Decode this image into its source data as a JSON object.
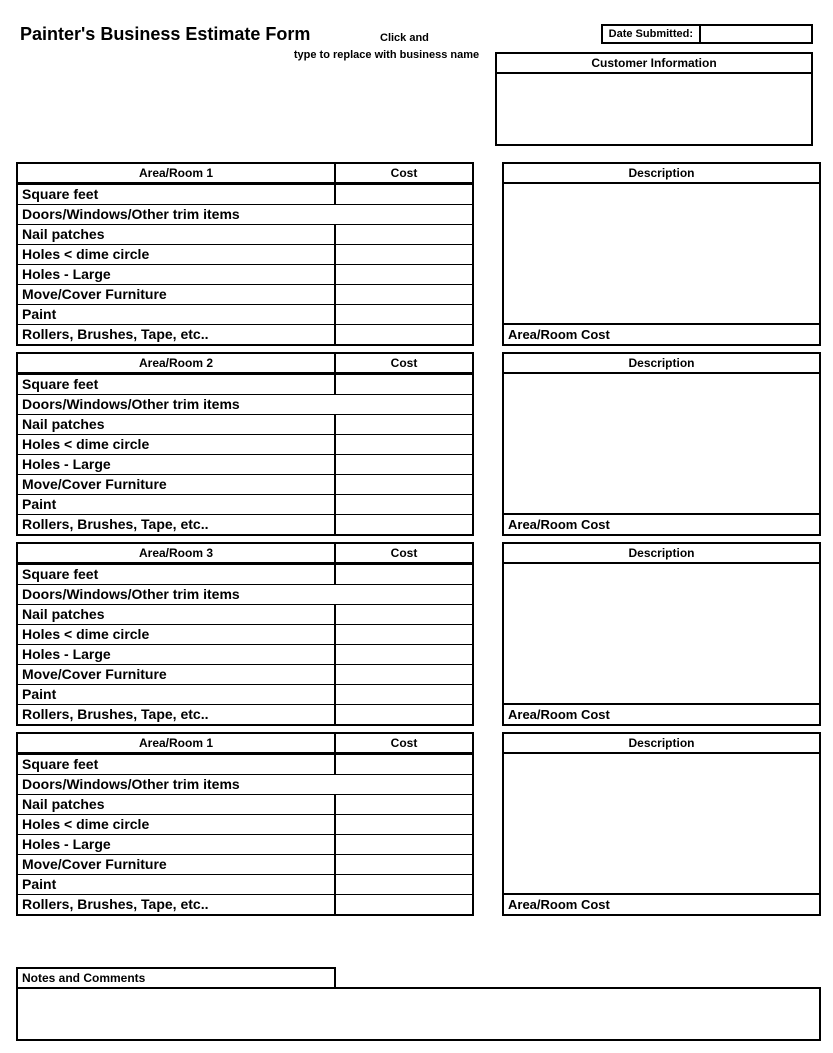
{
  "title": "Painter's Business Estimate Form",
  "click_text": "Click and",
  "subtitle": "type to replace with business name",
  "date_label": "Date Submitted:",
  "customer_info_header": "Customer Information",
  "description_header": "Description",
  "area_room_cost_label": "Area/Room Cost",
  "cost_header": "Cost",
  "notes_label": "Notes and Comments",
  "room_items": [
    "Square feet",
    "Doors/Windows/Other trim items",
    "Nail patches",
    "Holes < dime circle",
    "Holes - Large",
    "Move/Cover Furniture",
    "Paint",
    "Rollers, Brushes, Tape, etc.."
  ],
  "sections": [
    {
      "title": "Area/Room 1"
    },
    {
      "title": "Area/Room 2"
    },
    {
      "title": "Area/Room 3"
    },
    {
      "title": "Area/Room 1"
    }
  ],
  "wide_row_index": 1
}
